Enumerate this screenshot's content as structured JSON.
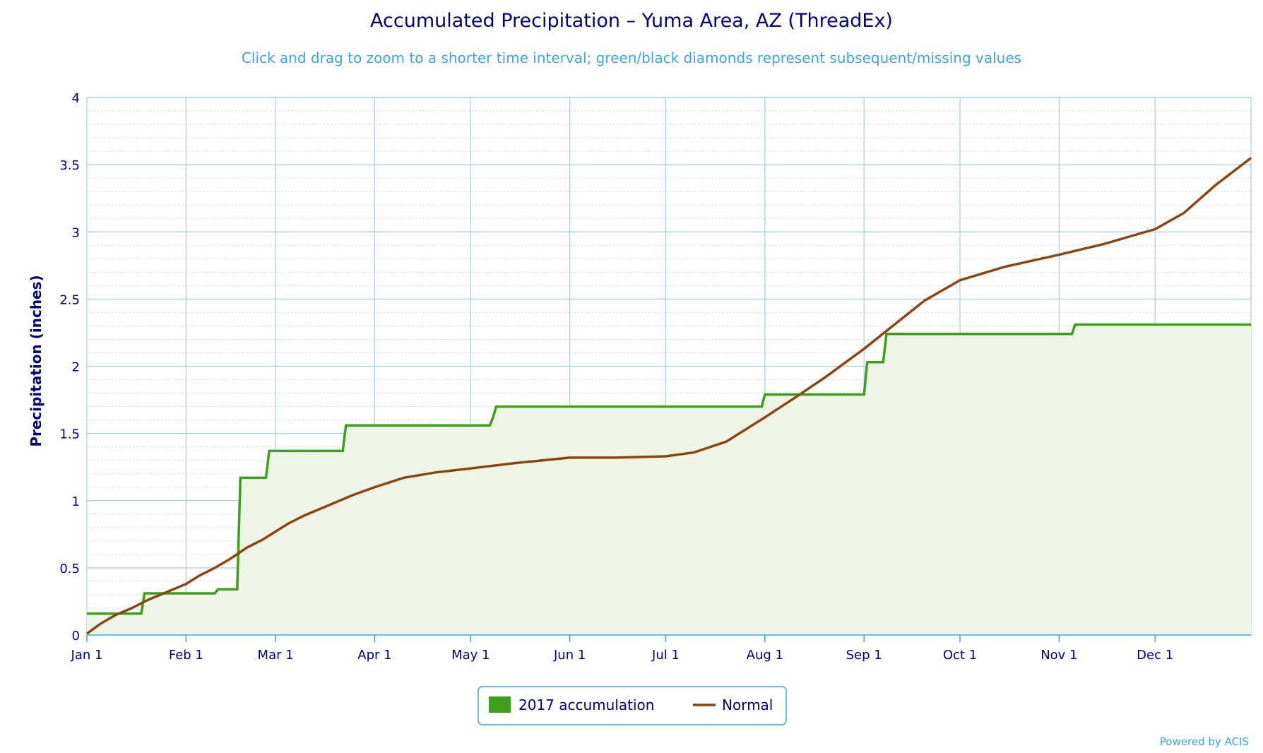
{
  "chart_data": {
    "type": "area",
    "title": "Accumulated Precipitation – Yuma Area, AZ (ThreadEx)",
    "subtitle": "Click and drag to zoom to a shorter time interval; green/black diamonds represent subsequent/missing values",
    "ylabel": "Precipitation (inches)",
    "xlabel": "",
    "ylim": [
      0,
      4
    ],
    "yticks": [
      0,
      0.5,
      1,
      1.5,
      2,
      2.5,
      3,
      3.5,
      4
    ],
    "ytick_labels": [
      "0",
      "0.5",
      "1",
      "1.5",
      "2",
      "2.5",
      "3",
      "3.5",
      "4"
    ],
    "xlim": [
      "2017-01-01",
      "2017-12-31"
    ],
    "xticks": [
      "Jan 1",
      "Feb 1",
      "Mar 1",
      "Apr 1",
      "May 1",
      "Jun 1",
      "Jul 1",
      "Aug 1",
      "Sep 1",
      "Oct 1",
      "Nov 1",
      "Dec 1"
    ],
    "xtick_dates": [
      "2017-01-01",
      "2017-02-01",
      "2017-03-01",
      "2017-04-01",
      "2017-05-01",
      "2017-06-01",
      "2017-07-01",
      "2017-08-01",
      "2017-09-01",
      "2017-10-01",
      "2017-11-01",
      "2017-12-01"
    ],
    "grid": true,
    "legend_position": "bottom-center",
    "series": [
      {
        "name": "2017 accumulation",
        "kind": "area-step",
        "color": "#3F9F1A",
        "fill": "#EEF5E6",
        "points": [
          [
            "2017-01-01",
            0.16
          ],
          [
            "2017-01-18",
            0.16
          ],
          [
            "2017-01-19",
            0.31
          ],
          [
            "2017-02-10",
            0.31
          ],
          [
            "2017-02-11",
            0.34
          ],
          [
            "2017-02-17",
            0.34
          ],
          [
            "2017-02-18",
            1.17
          ],
          [
            "2017-02-26",
            1.17
          ],
          [
            "2017-02-27",
            1.37
          ],
          [
            "2017-03-22",
            1.37
          ],
          [
            "2017-03-23",
            1.56
          ],
          [
            "2017-05-07",
            1.56
          ],
          [
            "2017-05-08",
            1.62
          ],
          [
            "2017-05-09",
            1.7
          ],
          [
            "2017-07-31",
            1.7
          ],
          [
            "2017-08-01",
            1.79
          ],
          [
            "2017-09-01",
            1.79
          ],
          [
            "2017-09-02",
            2.03
          ],
          [
            "2017-09-07",
            2.03
          ],
          [
            "2017-09-08",
            2.24
          ],
          [
            "2017-11-05",
            2.24
          ],
          [
            "2017-11-06",
            2.31
          ],
          [
            "2017-12-31",
            2.31
          ]
        ]
      },
      {
        "name": "Normal",
        "kind": "line",
        "color": "#8B4513",
        "points": [
          [
            "2017-01-01",
            0.01
          ],
          [
            "2017-01-05",
            0.08
          ],
          [
            "2017-01-10",
            0.15
          ],
          [
            "2017-01-15",
            0.2
          ],
          [
            "2017-01-20",
            0.26
          ],
          [
            "2017-01-25",
            0.31
          ],
          [
            "2017-02-01",
            0.38
          ],
          [
            "2017-02-05",
            0.44
          ],
          [
            "2017-02-10",
            0.5
          ],
          [
            "2017-02-15",
            0.57
          ],
          [
            "2017-02-20",
            0.65
          ],
          [
            "2017-02-25",
            0.71
          ],
          [
            "2017-03-01",
            0.77
          ],
          [
            "2017-03-05",
            0.83
          ],
          [
            "2017-03-10",
            0.89
          ],
          [
            "2017-03-15",
            0.94
          ],
          [
            "2017-03-20",
            0.99
          ],
          [
            "2017-03-25",
            1.04
          ],
          [
            "2017-04-01",
            1.1
          ],
          [
            "2017-04-10",
            1.17
          ],
          [
            "2017-04-20",
            1.21
          ],
          [
            "2017-05-01",
            1.24
          ],
          [
            "2017-05-15",
            1.28
          ],
          [
            "2017-06-01",
            1.32
          ],
          [
            "2017-06-15",
            1.32
          ],
          [
            "2017-07-01",
            1.33
          ],
          [
            "2017-07-10",
            1.36
          ],
          [
            "2017-07-20",
            1.44
          ],
          [
            "2017-08-01",
            1.62
          ],
          [
            "2017-08-10",
            1.76
          ],
          [
            "2017-08-20",
            1.92
          ],
          [
            "2017-09-01",
            2.13
          ],
          [
            "2017-09-10",
            2.3
          ],
          [
            "2017-09-20",
            2.49
          ],
          [
            "2017-10-01",
            2.64
          ],
          [
            "2017-10-15",
            2.74
          ],
          [
            "2017-11-01",
            2.83
          ],
          [
            "2017-11-15",
            2.91
          ],
          [
            "2017-12-01",
            3.02
          ],
          [
            "2017-12-10",
            3.14
          ],
          [
            "2017-12-20",
            3.35
          ],
          [
            "2017-12-31",
            3.55
          ]
        ]
      }
    ]
  },
  "colors": {
    "title": "#000080",
    "subtitle": "#3AA7DB",
    "grid_major": "#A7CFE3",
    "grid_minor": "#D3D3D3",
    "axis": "#3AA7DB",
    "legend_border": "#3AA7DB"
  },
  "credit": "Powered by ACIS"
}
